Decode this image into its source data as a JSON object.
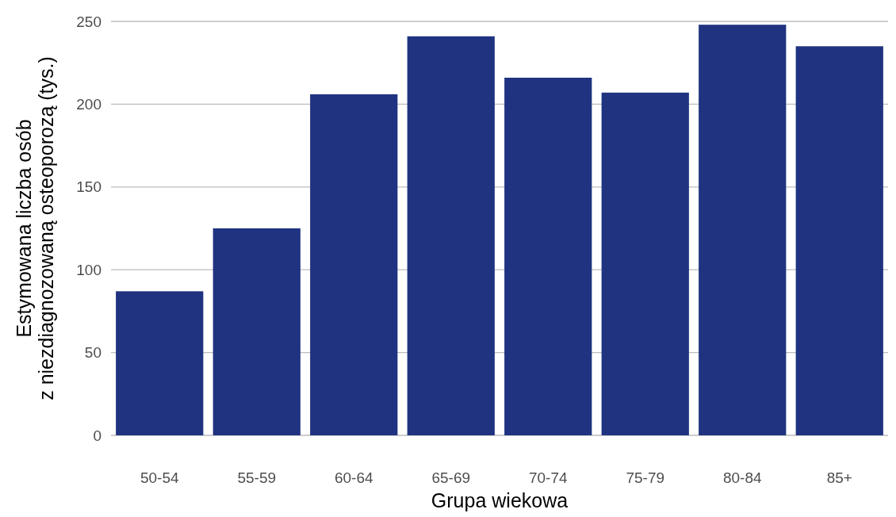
{
  "chart_data": {
    "type": "bar",
    "xlabel": "Grupa wiekowa",
    "ylabel": "Estymowana liczba osób\nz niezdiagnozowaną osteoporozą (tys.)",
    "categories": [
      "50-54",
      "55-59",
      "60-64",
      "65-69",
      "70-74",
      "75-79",
      "80-84",
      "85+"
    ],
    "values": [
      87,
      125,
      206,
      241,
      216,
      207,
      248,
      235
    ],
    "color": "#1f3380",
    "ylim": [
      0,
      250
    ],
    "yticks": [
      0,
      50,
      100,
      150,
      200,
      250
    ],
    "grid": "y"
  }
}
